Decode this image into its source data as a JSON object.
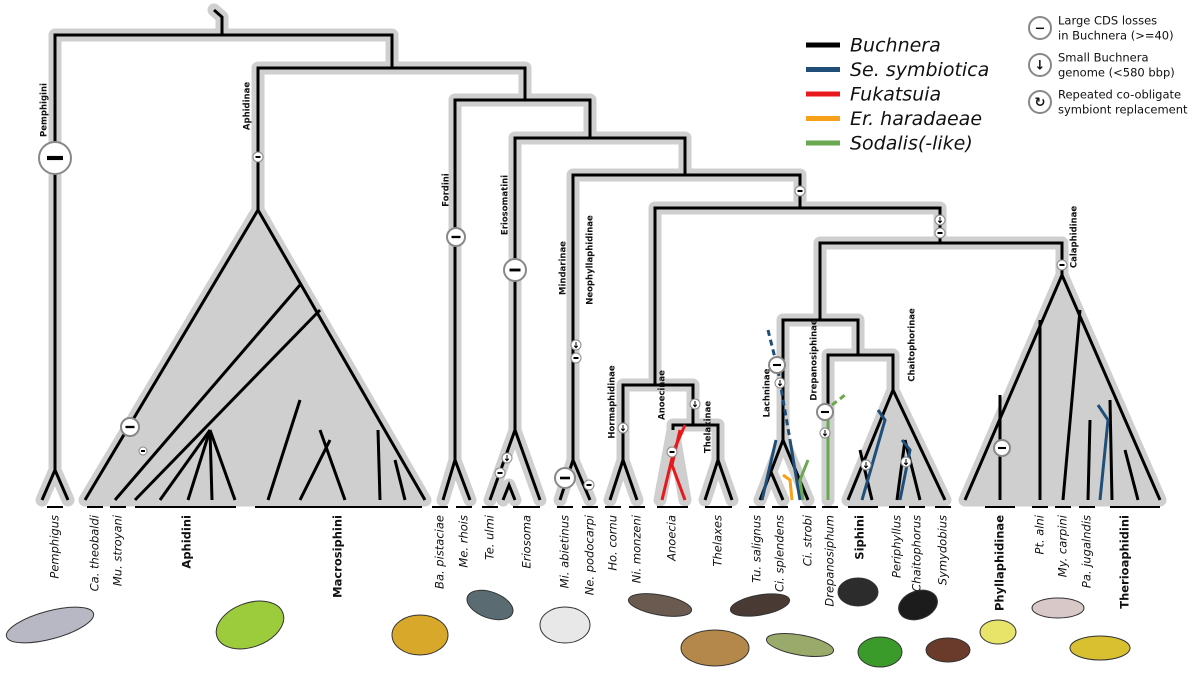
{
  "legend": [
    {
      "name": "Buchnera",
      "color": "#000000"
    },
    {
      "name": "Se. symbiotica",
      "color": "#1f4e79"
    },
    {
      "name": "Fukatsuia",
      "color": "#e8191c"
    },
    {
      "name": "Er. haradaeae",
      "color": "#f7a11a"
    },
    {
      "name": "Sodalis(-like)",
      "color": "#6aa84f"
    }
  ],
  "key": [
    {
      "symbol": "−",
      "lines": [
        "Large CDS losses",
        "in Buchnera (>=40)"
      ]
    },
    {
      "symbol": "↓",
      "lines": [
        "Small Buchnera",
        "genome (<580 bbp)"
      ]
    },
    {
      "symbol": "↻",
      "lines": [
        "Repeated co-obligate",
        "symbiont replacement"
      ]
    }
  ],
  "clades": [
    "Pemphigini",
    "Aphidinae",
    "Fordini",
    "Eriosomatini",
    "Mindarinae",
    "Neophyllaphidinae",
    "Hormaphidinae",
    "Anoecinae",
    "Thelaxinae",
    "Lachninae",
    "Drepanosiphinae",
    "Chaitophorinae",
    "Calaphidinae"
  ],
  "tips": [
    "Pemphigus",
    "Ca. theobaldi",
    "Mu. stroyani",
    "Aphidini",
    "Macrosiphini",
    "Ba. pistaciae",
    "Me. rhois",
    "Te. ulmi",
    "Eriosoma",
    "Mi. abietinus",
    "Ne. podocarpi",
    "Ho. cornu",
    "Ni. monzeni",
    "Anoecia",
    "Thelaxes",
    "Tu. salignus",
    "Ci. splendens",
    "Ci. strobi",
    "Drepanosiphum",
    "Siphini",
    "Periphyllus",
    "Chaitophorus",
    "Symydobius",
    "Phyllaphidinae",
    "Pt. alni",
    "My. carpini",
    "Pa. jugalndis",
    "Therioaphidini"
  ]
}
